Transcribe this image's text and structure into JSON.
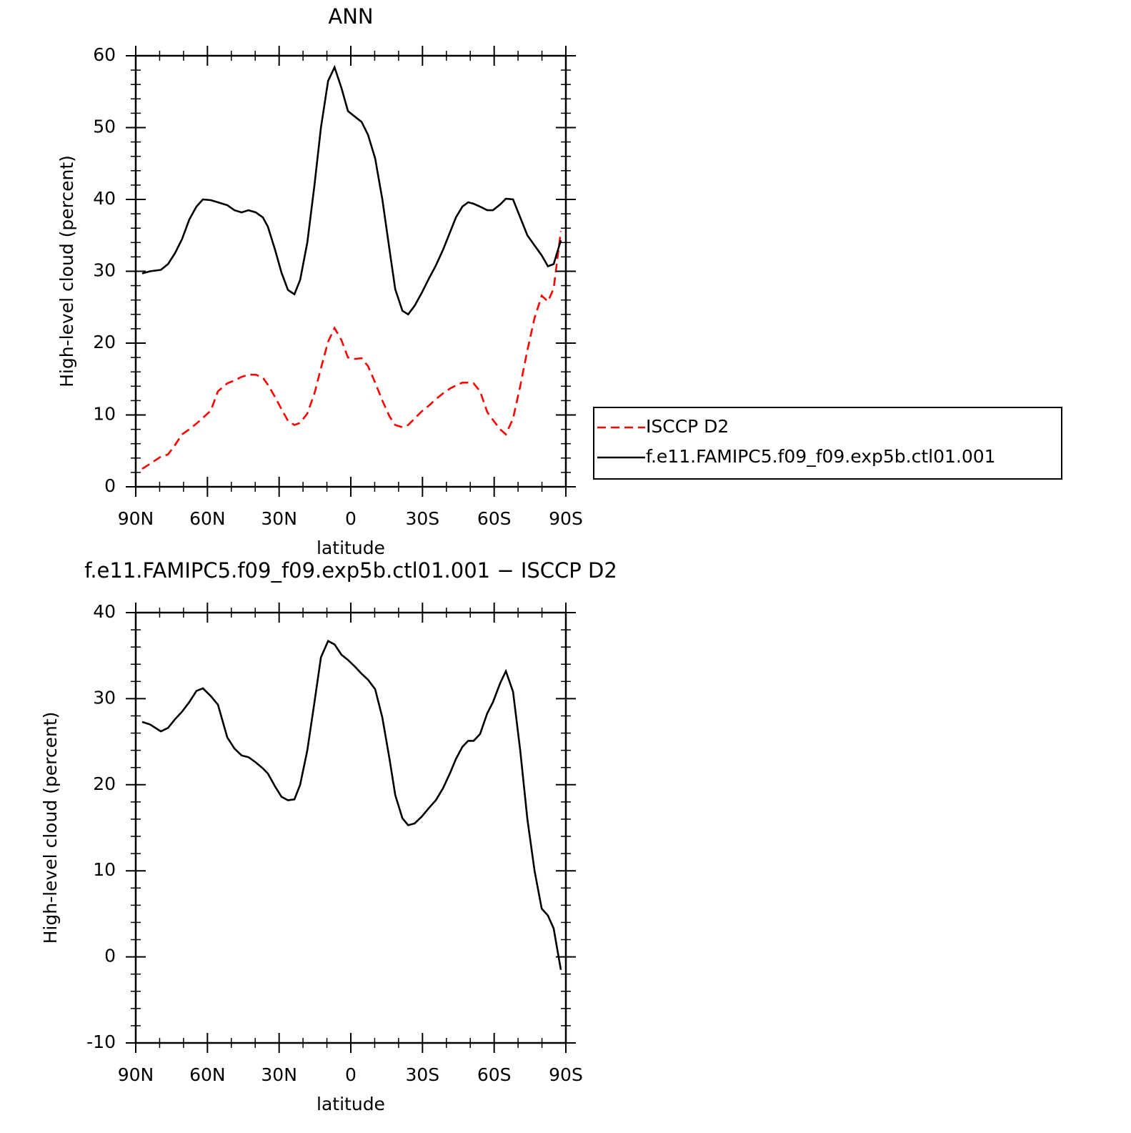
{
  "chart_data": [
    {
      "type": "line",
      "title": "ANN",
      "xlabel": "latitude",
      "ylabel": "High-level cloud (percent)",
      "x": [
        87.3,
        84.0,
        79.5,
        76.5,
        73.6,
        70.6,
        67.6,
        64.6,
        61.9,
        58.6,
        55.6,
        51.7,
        48.7,
        45.7,
        42.8,
        39.8,
        36.8,
        34.7,
        31.7,
        29.0,
        26.3,
        23.6,
        21.2,
        18.2,
        15.2,
        12.5,
        9.5,
        6.8,
        3.9,
        1.2,
        -1.8,
        -4.5,
        -7.2,
        -10.2,
        -13.2,
        -16.2,
        -18.6,
        -21.6,
        -24.0,
        -26.7,
        -29.7,
        -32.7,
        -35.6,
        -38.6,
        -41.6,
        -44.0,
        -46.7,
        -49.1,
        -51.4,
        -54.1,
        -57.1,
        -59.5,
        -62.5,
        -64.9,
        -67.9,
        -70.9,
        -73.9,
        -76.9,
        -79.9,
        -82.5,
        -84.9,
        -87.9
      ],
      "series": [
        {
          "name": "ISCCP D2",
          "color": "#ff0000",
          "style": "dashed",
          "values": [
            2.5,
            3.2,
            4.2,
            4.5,
            5.8,
            7.3,
            8,
            8.8,
            9.6,
            10.6,
            13.3,
            14.4,
            14.8,
            15.3,
            15.6,
            15.6,
            15.2,
            14.2,
            12.5,
            10.8,
            9.2,
            8.6,
            8.9,
            10.2,
            13,
            16.5,
            20.2,
            22.1,
            20.4,
            18,
            17.8,
            17.9,
            16.8,
            14.5,
            12,
            9.8,
            8.6,
            8.3,
            8.6,
            9.5,
            10.5,
            11.3,
            12.2,
            13,
            13.7,
            14.1,
            14.5,
            14.5,
            14.4,
            13.3,
            10.4,
            9.3,
            8,
            7.3,
            9.5,
            14,
            19,
            23.5,
            26.6,
            25.8,
            27.6,
            35.6
          ]
        },
        {
          "name": "f.e11.FAMIPC5.f09_f09.exp5b.ctl01.001",
          "color": "#000000",
          "style": "solid",
          "values": [
            29.7,
            30.0,
            30.2,
            31,
            32.5,
            34.5,
            37.2,
            39,
            40,
            39.9,
            39.6,
            39.2,
            38.5,
            38.2,
            38.5,
            38.2,
            37.5,
            36.2,
            33,
            29.8,
            27.4,
            26.8,
            28.8,
            34,
            42,
            50,
            56.5,
            58.4,
            55.5,
            52.3,
            51.5,
            50.8,
            49,
            45.7,
            40,
            33,
            27.5,
            24.5,
            24,
            25.2,
            27,
            29,
            30.8,
            33,
            35.5,
            37.5,
            39,
            39.6,
            39.4,
            39,
            38.5,
            38.5,
            39.3,
            40.1,
            40,
            37.5,
            35,
            33.6,
            32.2,
            30.7,
            31,
            34.3
          ]
        }
      ],
      "xlim": [
        90,
        -90
      ],
      "xticks": [
        {
          "value": 90,
          "label": "90N"
        },
        {
          "value": 60,
          "label": "60N"
        },
        {
          "value": 30,
          "label": "30N"
        },
        0,
        {
          "value": -30,
          "label": "30S"
        },
        {
          "value": -60,
          "label": "60S"
        },
        {
          "value": -90,
          "label": "90S"
        }
      ],
      "ylim": [
        0,
        60
      ],
      "yticks": [
        0,
        10,
        20,
        30,
        40,
        50,
        60
      ],
      "legend": "right"
    },
    {
      "type": "line",
      "title": "f.e11.FAMIPC5.f09_f09.exp5b.ctl01.001 − ISCCP D2",
      "xlabel": "latitude",
      "ylabel": "High-level cloud (percent)",
      "x": [
        87.3,
        84.0,
        79.5,
        76.5,
        73.6,
        70.6,
        67.6,
        64.6,
        61.9,
        58.6,
        55.6,
        51.7,
        48.7,
        45.7,
        42.8,
        39.8,
        36.8,
        34.7,
        31.7,
        29.0,
        26.3,
        23.6,
        21.2,
        18.2,
        15.2,
        12.5,
        9.5,
        6.8,
        3.9,
        1.2,
        -1.8,
        -4.5,
        -7.2,
        -10.2,
        -13.2,
        -16.2,
        -18.6,
        -21.6,
        -24.0,
        -26.7,
        -29.7,
        -32.7,
        -35.6,
        -38.6,
        -41.6,
        -44.0,
        -46.7,
        -49.1,
        -51.4,
        -54.1,
        -57.1,
        -59.5,
        -62.5,
        -64.9,
        -67.9,
        -70.9,
        -73.9,
        -76.9,
        -79.9,
        -82.5,
        -84.9,
        -87.9
      ],
      "series": [
        {
          "color": "#000000",
          "style": "solid",
          "values": [
            27.3,
            27.0,
            26.2,
            26.6,
            27.6,
            28.5,
            29.6,
            30.9,
            31.2,
            30.3,
            29.3,
            25.5,
            24.2,
            23.4,
            23.2,
            22.6,
            21.9,
            21.3,
            19.8,
            18.6,
            18.2,
            18.3,
            20,
            24,
            29.6,
            34.8,
            36.7,
            36.3,
            35.1,
            34.5,
            33.7,
            32.9,
            32.2,
            31.1,
            27.8,
            23,
            18.8,
            16.1,
            15.3,
            15.5,
            16.3,
            17.3,
            18.2,
            19.6,
            21.4,
            23,
            24.4,
            25.1,
            25.1,
            25.9,
            28.3,
            29.6,
            31.8,
            33.2,
            30.8,
            24,
            16,
            10,
            5.6,
            4.8,
            3.3,
            -1.5
          ]
        }
      ],
      "xlim": [
        90,
        -90
      ],
      "xticks": [
        {
          "value": 90,
          "label": "90N"
        },
        {
          "value": 60,
          "label": "60N"
        },
        {
          "value": 30,
          "label": "30N"
        },
        0,
        {
          "value": -30,
          "label": "30S"
        },
        {
          "value": -60,
          "label": "60S"
        },
        {
          "value": -90,
          "label": "90S"
        }
      ],
      "ylim": [
        -10,
        40
      ],
      "yticks": [
        -10,
        0,
        10,
        20,
        30,
        40
      ]
    }
  ]
}
